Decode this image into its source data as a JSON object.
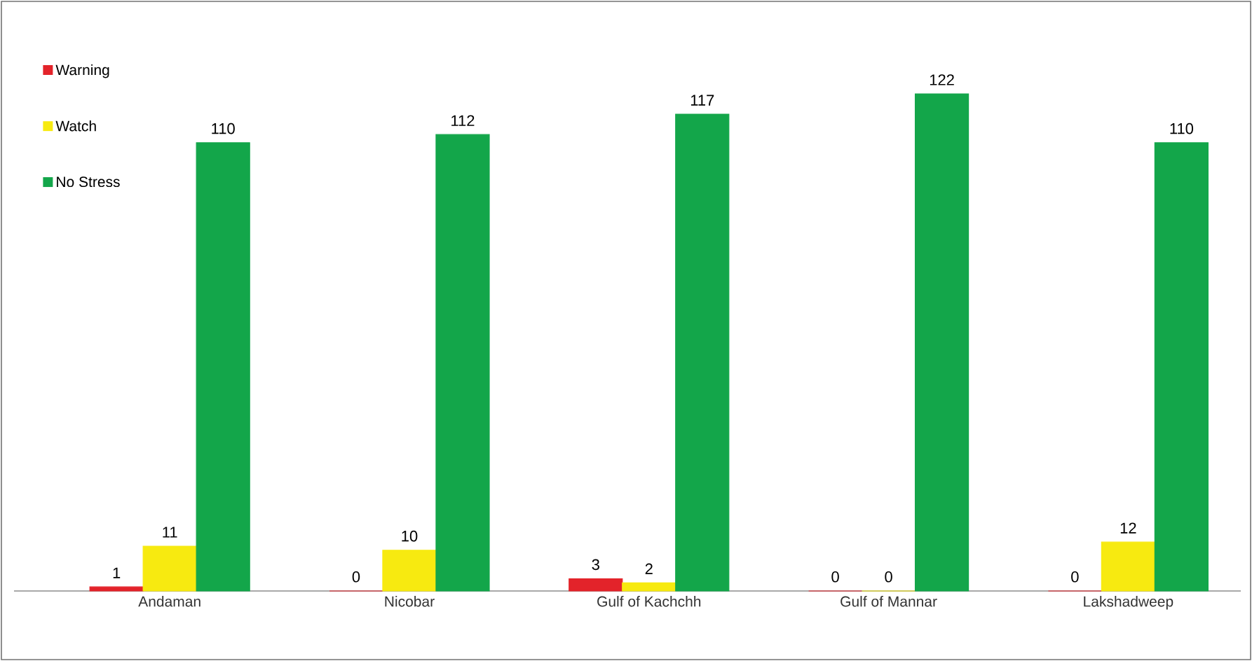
{
  "chart_data": {
    "type": "bar",
    "categories": [
      "Andaman",
      "Nicobar",
      "Gulf of Kachchh",
      "Gulf of Mannar",
      "Lakshadweep"
    ],
    "series": [
      {
        "name": "Warning",
        "color": "#e3232a",
        "values": [
          1,
          0,
          3,
          0,
          0
        ]
      },
      {
        "name": "Watch",
        "color": "#f7ea10",
        "values": [
          11,
          10,
          2,
          0,
          12
        ]
      },
      {
        "name": "No Stress",
        "color": "#13a64a",
        "values": [
          110,
          112,
          117,
          122,
          110
        ]
      }
    ],
    "data_labels": true,
    "legend": "top left"
  }
}
